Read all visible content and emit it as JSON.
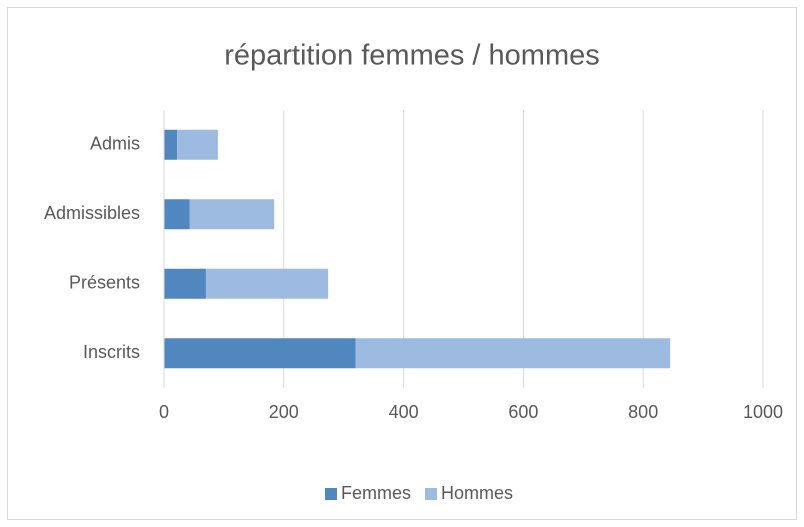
{
  "chart_data": {
    "type": "hbar_stacked",
    "title": "répartition femmes / hommes",
    "categories": [
      "Inscrits",
      "Présents",
      "Admissibles",
      "Admis"
    ],
    "series": [
      {
        "name": "Femmes",
        "color": "#4f87be",
        "values": [
          320,
          70,
          43,
          22
        ]
      },
      {
        "name": "Hommes",
        "color": "#9dbbe1",
        "values": [
          525,
          204,
          141,
          68
        ]
      }
    ],
    "xlim": [
      0,
      1000
    ],
    "xticks": [
      0,
      200,
      400,
      600,
      800,
      1000
    ],
    "grid": true,
    "legend": "bottom"
  }
}
